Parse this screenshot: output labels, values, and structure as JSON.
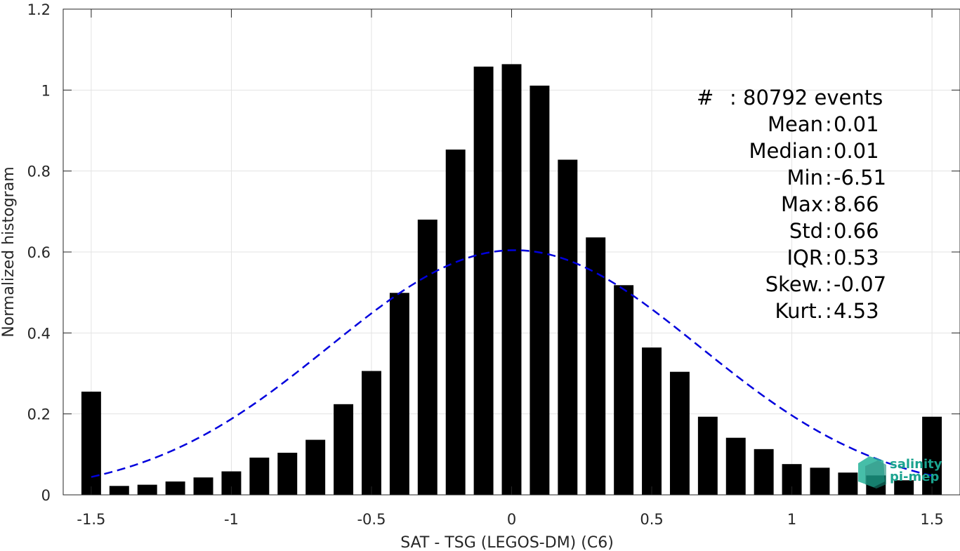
{
  "chart_data": {
    "type": "bar",
    "xlabel": "SAT - TSG (LEGOS-DM) (C6)",
    "ylabel": "Normalized histogram",
    "xlim": [
      -1.6,
      1.6
    ],
    "ylim": [
      0,
      1.2
    ],
    "grid": true,
    "xticks": [
      -1.5,
      -1,
      -0.5,
      0,
      0.5,
      1,
      1.5
    ],
    "xtick_labels": [
      "-1.5",
      "-1",
      "-0.5",
      "0",
      "0.5",
      "1",
      "1.5"
    ],
    "yticks": [
      0,
      0.2,
      0.4,
      0.6,
      0.8,
      1,
      1.2
    ],
    "ytick_labels": [
      "0",
      "0.2",
      "0.4",
      "0.6",
      "0.8",
      "1",
      "1.2"
    ],
    "bar_color": "#000000",
    "bars": {
      "x": [
        -1.5,
        -1.4,
        -1.3,
        -1.2,
        -1.1,
        -1.0,
        -0.9,
        -0.8,
        -0.7,
        -0.6,
        -0.5,
        -0.4,
        -0.3,
        -0.2,
        -0.1,
        0.0,
        0.1,
        0.2,
        0.3,
        0.4,
        0.5,
        0.6,
        0.7,
        0.8,
        0.9,
        1.0,
        1.1,
        1.2,
        1.3,
        1.4,
        1.5
      ],
      "values": [
        0.255,
        0.022,
        0.025,
        0.033,
        0.043,
        0.058,
        0.092,
        0.104,
        0.136,
        0.224,
        0.306,
        0.499,
        0.68,
        0.853,
        1.058,
        1.064,
        1.011,
        0.828,
        0.636,
        0.518,
        0.364,
        0.304,
        0.193,
        0.141,
        0.113,
        0.076,
        0.067,
        0.055,
        0.048,
        0.036,
        0.193
      ]
    },
    "fit_curve": {
      "type": "gaussian",
      "style": "dashed",
      "color": "#0000dd",
      "mean": 0.01,
      "std": 0.66,
      "x_range": [
        -1.5,
        1.5
      ]
    },
    "stats": [
      {
        "label": "#  ",
        "value": "80792 events"
      },
      {
        "label": "Mean",
        "value": "0.01"
      },
      {
        "label": "Median",
        "value": "0.01"
      },
      {
        "label": "Min",
        "value": "-6.51"
      },
      {
        "label": "Max",
        "value": "8.66"
      },
      {
        "label": "Std",
        "value": "0.66"
      },
      {
        "label": "IQR",
        "value": "0.53"
      },
      {
        "label": "Skew.",
        "value": "-0.07"
      },
      {
        "label": "Kurt.",
        "value": "4.53"
      }
    ]
  },
  "logo": {
    "line1": "salinity",
    "line2": "pi-mep",
    "color": "#1aa38f"
  }
}
